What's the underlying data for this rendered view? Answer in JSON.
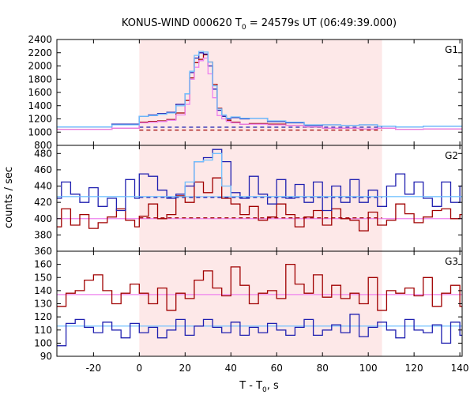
{
  "title": {
    "prefix": "KONUS-WIND 000620 T",
    "sub": "0",
    "suffix": " = 24579s UT (06:49:39.000)"
  },
  "xlabel": {
    "prefix": "T - T",
    "sub": "0",
    "suffix": ", s"
  },
  "ylabel": "counts / sec",
  "colors": {
    "dark_red": "#a00000",
    "dark_blue": "#2020b0",
    "pink": "#ee82ee",
    "light_blue": "#70c0ff",
    "shade": "#fde8e8"
  },
  "chart_data": {
    "type": "line",
    "shared_x": {
      "xlim": [
        -36,
        141
      ],
      "ticks": [
        -20,
        0,
        20,
        40,
        60,
        80,
        100,
        120,
        140
      ],
      "shaded_interval": [
        0,
        106
      ]
    },
    "panels": [
      {
        "label": "G1",
        "ylim": [
          800,
          2400
        ],
        "yticks": [
          800,
          1000,
          1200,
          1400,
          1600,
          1800,
          2000,
          2200,
          2400
        ],
        "bin_edges": [
          -36,
          -24,
          -12,
          0,
          4,
          8,
          12,
          16,
          20,
          22,
          24,
          26,
          28,
          30,
          32,
          34,
          36,
          38,
          40,
          44,
          48,
          56,
          64,
          72,
          80,
          88,
          96,
          104,
          112,
          124,
          141
        ],
        "series": [
          {
            "color": "dark_red",
            "style": "histogram",
            "values": [
              1040,
              1040,
              1060,
              1150,
              1160,
              1170,
              1190,
              1290,
              1480,
              1820,
              2050,
              2100,
              2170,
              2060,
              1720,
              1360,
              1240,
              1180,
              1150,
              1120,
              1130,
              1120,
              1100,
              1080,
              1060,
              1060,
              1050,
              1060,
              1040,
              1050
            ]
          },
          {
            "color": "dark_blue",
            "style": "histogram",
            "values": [
              1080,
              1080,
              1120,
              1240,
              1260,
              1280,
              1300,
              1420,
              1580,
              1900,
              2120,
              2200,
              2180,
              2000,
              1650,
              1330,
              1240,
              1200,
              1220,
              1200,
              1210,
              1160,
              1140,
              1100,
              1110,
              1100,
              1110,
              1090,
              1080,
              1090
            ]
          },
          {
            "color": "pink",
            "style": "histogram",
            "values": [
              1040,
              1040,
              1060,
              1140,
              1150,
              1160,
              1180,
              1260,
              1420,
              1800,
              1980,
              2080,
              2120,
              1880,
              1520,
              1250,
              1200,
              1160,
              1140,
              1120,
              1120,
              1110,
              1100,
              1080,
              1060,
              1060,
              1050,
              1060,
              1040,
              1050
            ]
          },
          {
            "color": "light_blue",
            "style": "histogram",
            "values": [
              1080,
              1080,
              1110,
              1240,
              1250,
              1270,
              1290,
              1400,
              1580,
              1920,
              2160,
              2220,
              2210,
              2060,
              1700,
              1350,
              1260,
              1210,
              1230,
              1210,
              1210,
              1170,
              1150,
              1110,
              1110,
              1100,
              1110,
              1090,
              1080,
              1090
            ]
          }
        ],
        "background_levels": [
          {
            "color": "dark_red",
            "value": 1030,
            "dashed_from": 0,
            "dashed_to": 106
          },
          {
            "color": "dark_blue",
            "value": 1075,
            "dashed_from": 0,
            "dashed_to": 106
          }
        ]
      },
      {
        "label": "G2",
        "ylim": [
          360,
          490
        ],
        "yticks": [
          360,
          380,
          400,
          420,
          440,
          460,
          480
        ],
        "bin_edges": [
          -36,
          -34,
          -30,
          -26,
          -22,
          -18,
          -14,
          -10,
          -6,
          -2,
          0,
          4,
          8,
          12,
          16,
          20,
          24,
          28,
          32,
          36,
          40,
          44,
          48,
          52,
          56,
          60,
          64,
          68,
          72,
          76,
          80,
          84,
          88,
          92,
          96,
          100,
          104,
          108,
          112,
          116,
          120,
          124,
          128,
          132,
          136,
          140,
          141
        ],
        "series": [
          {
            "color": "dark_red",
            "style": "histogram",
            "values": [
              390,
              412,
              392,
              405,
              388,
              395,
              402,
              412,
              398,
              390,
              403,
              418,
              400,
              405,
              428,
              420,
              445,
              432,
              450,
              425,
              418,
              405,
              415,
              398,
              402,
              418,
              405,
              390,
              402,
              410,
              392,
              412,
              400,
              398,
              385,
              408,
              392,
              398,
              418,
              406,
              395,
              402,
              410,
              412,
              400,
              405
            ]
          },
          {
            "color": "dark_blue",
            "style": "histogram",
            "values": [
              425,
              445,
              430,
              420,
              438,
              415,
              425,
              410,
              448,
              425,
              455,
              452,
              435,
              425,
              430,
              440,
              470,
              475,
              485,
              470,
              432,
              425,
              452,
              430,
              418,
              448,
              425,
              442,
              420,
              445,
              410,
              440,
              420,
              448,
              420,
              435,
              415,
              440,
              455,
              430,
              445,
              425,
              415,
              445,
              420,
              440
            ]
          },
          {
            "color": "light_blue",
            "style": "histogram",
            "values": [
              427,
              427,
              427,
              427,
              427,
              427,
              427,
              427,
              427,
              427,
              427,
              427,
              427,
              427,
              427,
              445,
              470,
              472,
              480,
              440,
              427,
              427,
              427,
              427,
              427,
              427,
              427,
              427,
              427,
              427,
              427,
              427,
              427,
              427,
              427,
              427,
              427,
              427,
              427,
              427,
              427,
              427,
              427,
              427,
              427,
              427
            ]
          }
        ],
        "background_levels": [
          {
            "color": "pink",
            "value": 400
          },
          {
            "color": "light_blue",
            "value": 427
          },
          {
            "color": "dark_red",
            "value": 401,
            "dashed_from": 0,
            "dashed_to": 106
          },
          {
            "color": "dark_blue",
            "value": 426,
            "dashed_from": 0,
            "dashed_to": 106
          }
        ]
      },
      {
        "label": "G3",
        "ylim": [
          90,
          170
        ],
        "yticks": [
          90,
          100,
          110,
          120,
          130,
          140,
          150,
          160,
          170
        ],
        "bin_edges": [
          -36,
          -32,
          -28,
          -24,
          -20,
          -16,
          -12,
          -8,
          -4,
          0,
          4,
          8,
          12,
          16,
          20,
          24,
          28,
          32,
          36,
          40,
          44,
          48,
          52,
          56,
          60,
          64,
          68,
          72,
          76,
          80,
          84,
          88,
          92,
          96,
          100,
          104,
          108,
          112,
          116,
          120,
          124,
          128,
          132,
          136,
          140,
          141
        ],
        "series": [
          {
            "color": "dark_red",
            "style": "histogram",
            "values": [
              128,
              138,
              140,
              148,
              152,
              140,
              130,
              138,
              145,
              138,
              130,
              142,
              125,
              138,
              134,
              148,
              155,
              142,
              136,
              158,
              144,
              130,
              138,
              140,
              134,
              160,
              145,
              138,
              152,
              135,
              144,
              134,
              138,
              130,
              150,
              125,
              140,
              138,
              142,
              136,
              150,
              128,
              138,
              144,
              128
            ]
          },
          {
            "color": "dark_blue",
            "style": "histogram",
            "values": [
              98,
              115,
              118,
              112,
              108,
              116,
              110,
              104,
              115,
              108,
              112,
              104,
              110,
              118,
              106,
              113,
              118,
              112,
              108,
              116,
              106,
              112,
              108,
              115,
              110,
              106,
              112,
              118,
              106,
              110,
              114,
              108,
              122,
              105,
              112,
              116,
              110,
              104,
              118,
              110,
              108,
              114,
              100,
              116,
              106
            ]
          }
        ],
        "background_levels": [
          {
            "color": "pink",
            "value": 137
          },
          {
            "color": "light_blue",
            "value": 113
          }
        ]
      }
    ]
  }
}
